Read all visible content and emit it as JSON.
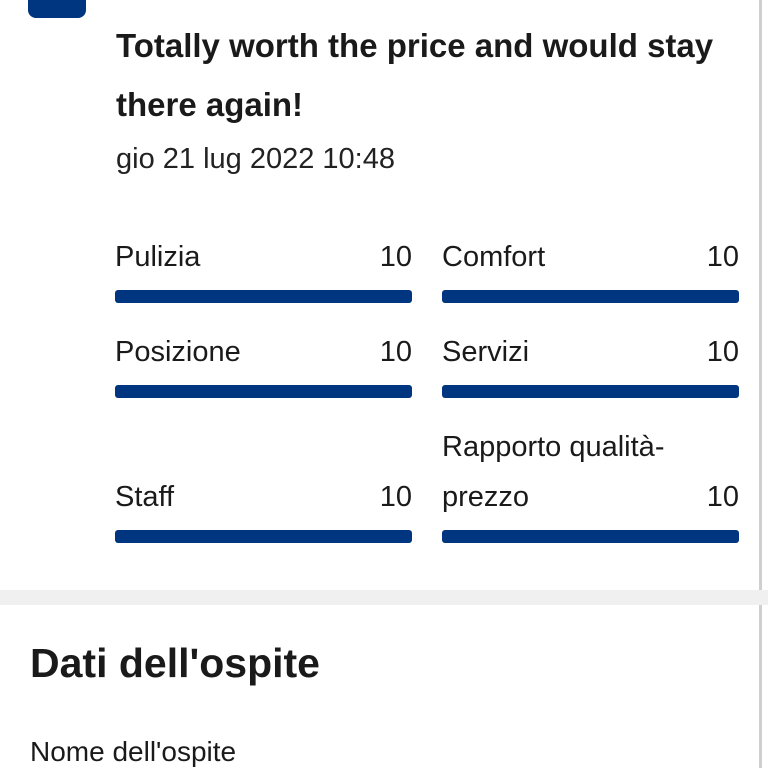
{
  "review": {
    "text": "Totally worth the price and would stay there again!",
    "date": "gio 21 lug 2022 10:48"
  },
  "ratings": [
    {
      "label": "Pulizia",
      "score": 10
    },
    {
      "label": "Comfort",
      "score": 10
    },
    {
      "label": "Posizione",
      "score": 10
    },
    {
      "label": "Servizi",
      "score": 10
    },
    {
      "label": "Staff",
      "score": 10
    },
    {
      "label": "Rapporto qualità-prezzo",
      "score": 10
    }
  ],
  "guest_section": {
    "title": "Dati dell'ospite",
    "field_label": "Nome dell'ospite"
  }
}
